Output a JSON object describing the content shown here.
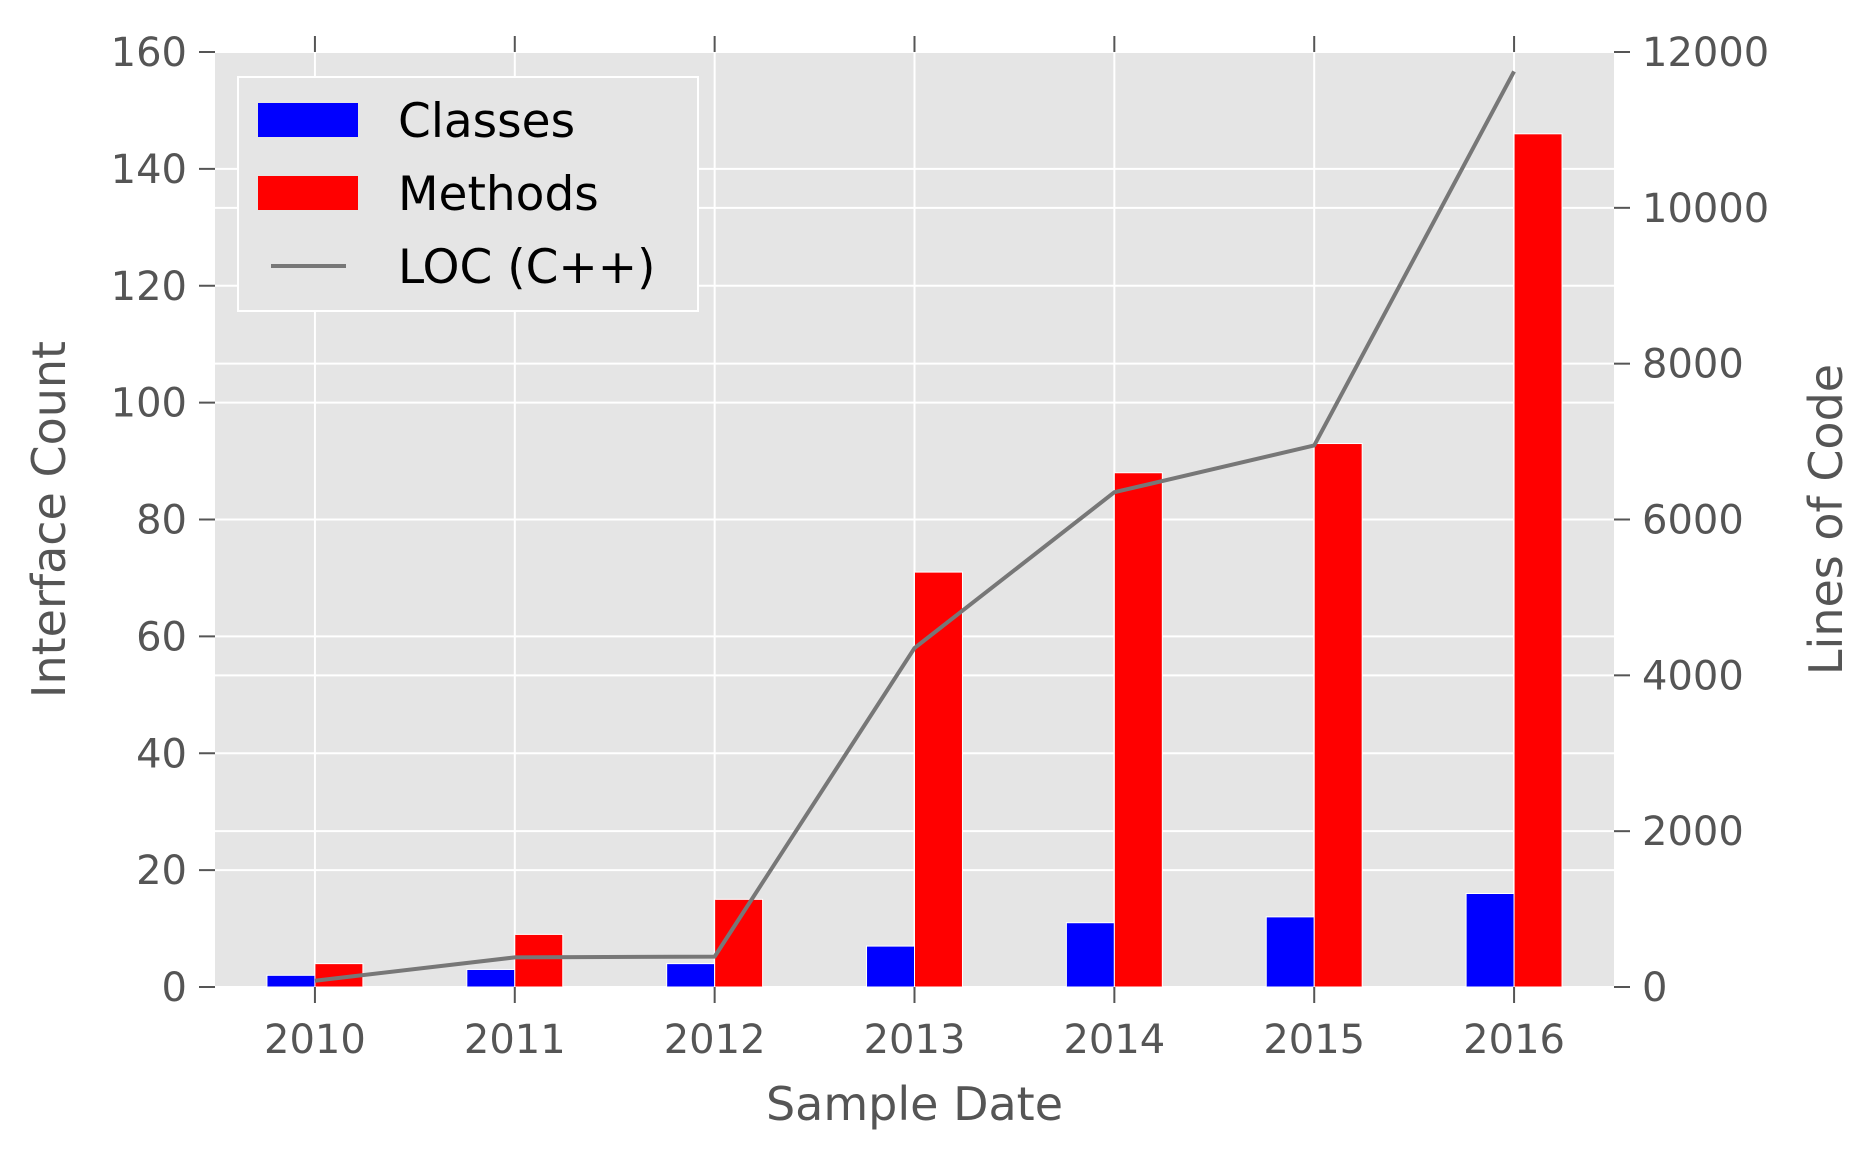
{
  "chart_data": {
    "type": "bar",
    "categories": [
      "2010",
      "2011",
      "2012",
      "2013",
      "2014",
      "2015",
      "2016"
    ],
    "series": [
      {
        "name": "Classes",
        "type": "bar",
        "axis": "left",
        "color": "#0000ff",
        "values": [
          2,
          3,
          4,
          7,
          11,
          12,
          16
        ]
      },
      {
        "name": "Methods",
        "type": "bar",
        "axis": "left",
        "color": "#ff0000",
        "values": [
          4,
          9,
          15,
          71,
          88,
          93,
          146
        ]
      },
      {
        "name": "LOC (C++)",
        "type": "line",
        "axis": "right",
        "color": "#777777",
        "values": [
          80,
          380,
          390,
          4350,
          6350,
          6950,
          11750
        ]
      }
    ],
    "xlabel": "Sample Date",
    "ylabel": "Interface Count",
    "ylabel_right": "Lines of Code",
    "ylim": [
      0,
      160
    ],
    "ylim_right": [
      0,
      12000
    ],
    "yticks": [
      0,
      20,
      40,
      60,
      80,
      100,
      120,
      140,
      160
    ],
    "yticks_right": [
      0,
      2000,
      4000,
      6000,
      8000,
      10000,
      12000
    ],
    "grid": true,
    "legend_position": "top-left",
    "background": "#e5e5e5"
  }
}
